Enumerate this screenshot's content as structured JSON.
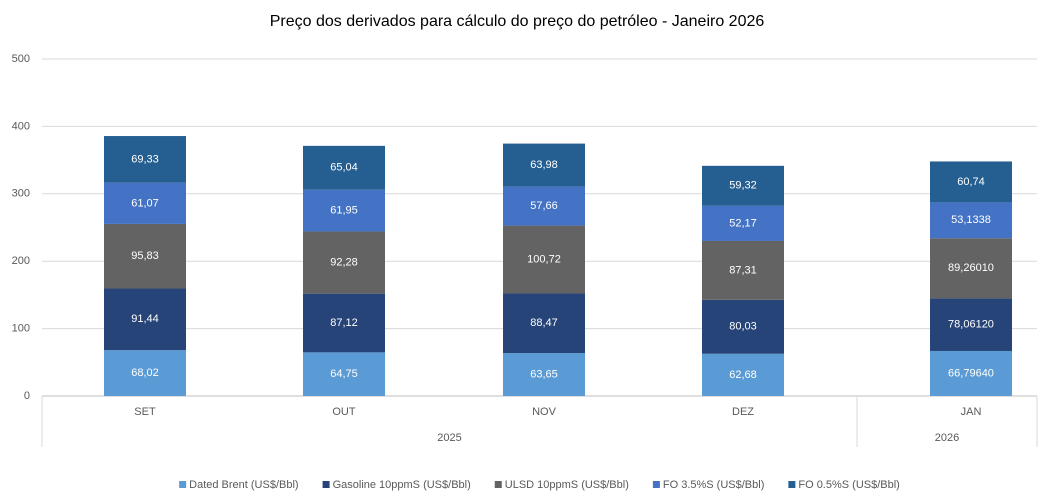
{
  "chart_data": {
    "type": "stacked_bar",
    "title": "Preço dos derivados para cálculo do preço do petróleo - Janeiro 2026",
    "categories": [
      "SET",
      "OUT",
      "NOV",
      "DEZ",
      "JAN"
    ],
    "years": [
      "2025",
      "2025",
      "2025",
      "2025",
      "2026"
    ],
    "ylim": [
      0,
      500
    ],
    "yticks": [
      0,
      100,
      200,
      300,
      400,
      500
    ],
    "grid": true,
    "legend": "bottom",
    "series": [
      {
        "name": "Dated Brent (US$/Bbl)",
        "color": "#5b9bd5",
        "values": [
          68.02,
          64.75,
          63.65,
          62.68,
          66.7964
        ],
        "value_labels": [
          "68,02",
          "64,75",
          "63,65",
          "62,68",
          "66,79640"
        ]
      },
      {
        "name": "Gasoline 10ppmS (US$/Bbl)",
        "color": "#264478",
        "values": [
          91.44,
          87.12,
          88.47,
          80.03,
          78.0612
        ],
        "value_labels": [
          "91,44",
          "87,12",
          "88,47",
          "80,03",
          "78,06120"
        ]
      },
      {
        "name": "ULSD 10ppmS (US$/Bbl)",
        "color": "#636363",
        "values": [
          95.83,
          92.28,
          100.72,
          87.31,
          89.2601
        ],
        "value_labels": [
          "95,83",
          "92,28",
          "100,72",
          "87,31",
          "89,26010"
        ]
      },
      {
        "name": "FO 3.5%S (US$/Bbl)",
        "color": "#4472c4",
        "values": [
          61.07,
          61.95,
          57.66,
          52.17,
          53.1338
        ],
        "value_labels": [
          "61,07",
          "61,95",
          "57,66",
          "52,17",
          "53,1338"
        ]
      },
      {
        "name": "FO 0.5%S (US$/Bbl)",
        "color": "#255e91",
        "values": [
          69.33,
          65.04,
          63.98,
          59.32,
          60.74
        ],
        "value_labels": [
          "69,33",
          "65,04",
          "63,98",
          "59,32",
          "60,74"
        ]
      }
    ]
  }
}
